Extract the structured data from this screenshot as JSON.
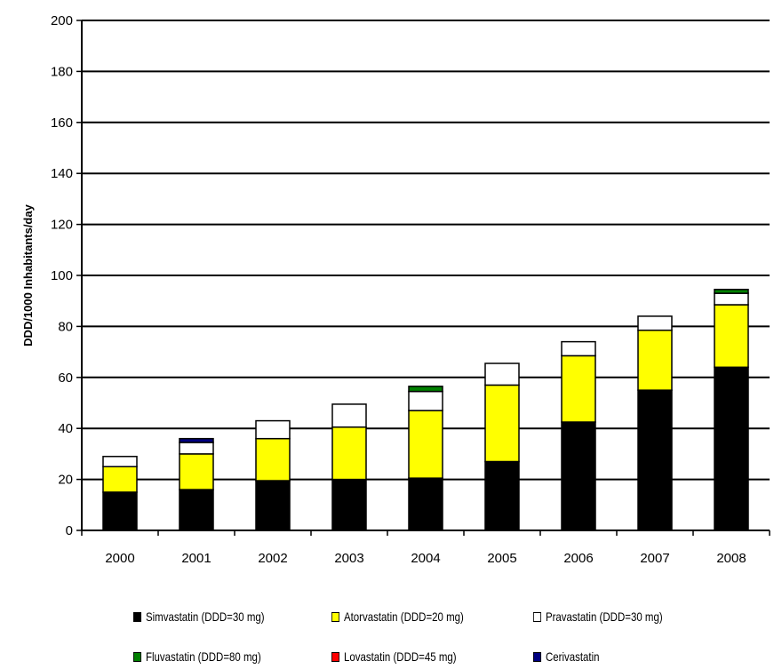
{
  "chart_data": {
    "type": "bar",
    "stacked": true,
    "title": "",
    "xlabel": "",
    "ylabel": "DDD/1000 Inhabitants/day",
    "ylim": [
      0,
      200
    ],
    "yticks": [
      0,
      20,
      40,
      60,
      80,
      100,
      120,
      140,
      160,
      180,
      200
    ],
    "grid": true,
    "legend_position": "bottom",
    "categories": [
      "2000",
      "2001",
      "2002",
      "2003",
      "2004",
      "2005",
      "2006",
      "2007",
      "2008"
    ],
    "series": [
      {
        "name": "Simvastatin (DDD=30 mg)",
        "color": "#000000",
        "values": [
          15,
          16,
          19.5,
          20,
          20.5,
          27,
          42.5,
          55,
          64
        ]
      },
      {
        "name": "Atorvastatin (DDD=20 mg)",
        "color": "#ffff00",
        "values": [
          10,
          14,
          16.5,
          20.5,
          26.5,
          30,
          26,
          23.5,
          24.5
        ]
      },
      {
        "name": "Pravastatin (DDD=30 mg)",
        "color": "#ffffff",
        "values": [
          4,
          4.5,
          7,
          9,
          7.5,
          8.5,
          5.5,
          5.5,
          4.5
        ]
      },
      {
        "name": "Fluvastatin (DDD=80 mg)",
        "color": "#008000",
        "values": [
          0,
          0,
          0,
          0,
          2,
          0,
          0,
          0,
          1.5
        ]
      },
      {
        "name": "Lovastatin (DDD=45 mg)",
        "color": "#ff0000",
        "values": [
          0,
          0,
          0,
          0,
          0,
          0,
          0,
          0,
          0
        ]
      },
      {
        "name": "Cerivastatin",
        "color": "#000080",
        "values": [
          0,
          1.5,
          0,
          0,
          0,
          0,
          0,
          0,
          0
        ]
      }
    ]
  },
  "legend": {
    "items": [
      {
        "label": "Simvastatin (DDD=30 mg)",
        "color": "#000000"
      },
      {
        "label": "Atorvastatin (DDD=20 mg)",
        "color": "#ffff00"
      },
      {
        "label": "Pravastatin (DDD=30 mg)",
        "color": "#ffffff"
      },
      {
        "label": "Fluvastatin (DDD=80 mg)",
        "color": "#008000"
      },
      {
        "label": "Lovastatin (DDD=45 mg)",
        "color": "#ff0000"
      },
      {
        "label": "Cerivastatin",
        "color": "#000080"
      }
    ]
  }
}
